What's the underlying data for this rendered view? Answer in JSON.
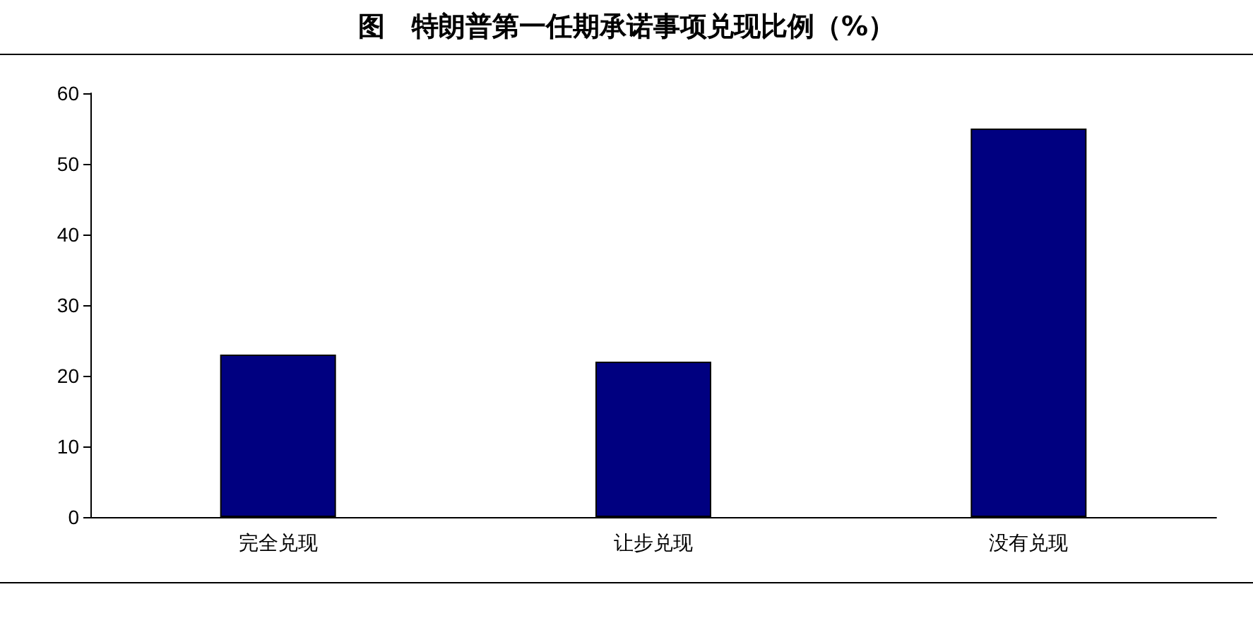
{
  "chart_data": {
    "type": "bar",
    "title": "图　特朗普第一任期承诺事项兑现比例（%）",
    "categories": [
      "完全兑现",
      "让步兑现",
      "没有兑现"
    ],
    "values": [
      23,
      22,
      55
    ],
    "color": "#000080",
    "ylim": [
      0,
      60
    ],
    "yticks": [
      0,
      10,
      20,
      30,
      40,
      50,
      60
    ],
    "grid": false
  }
}
